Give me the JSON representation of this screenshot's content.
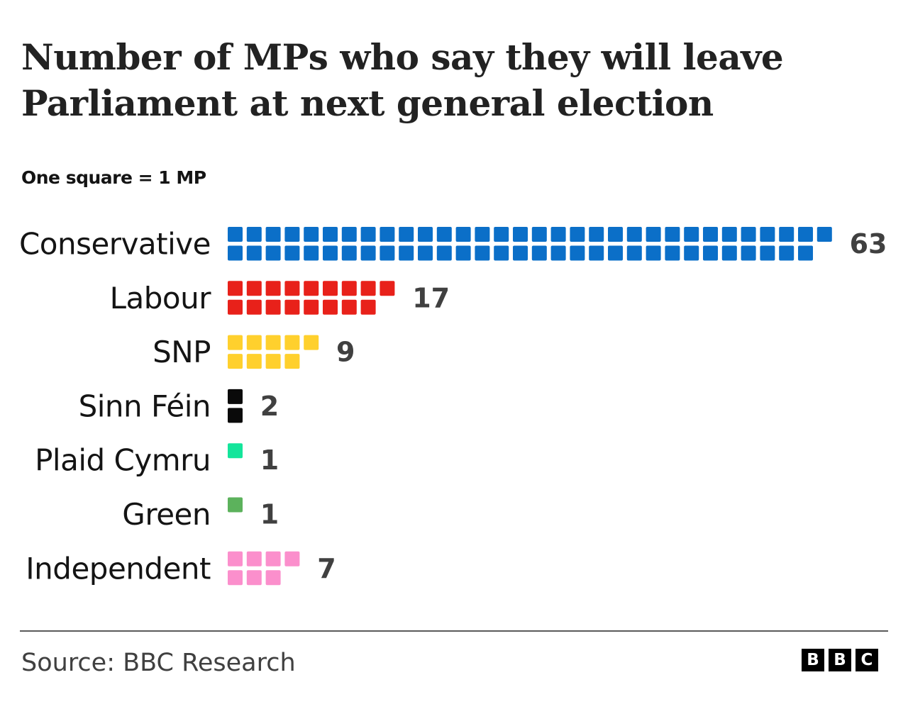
{
  "chart_data": {
    "type": "bar",
    "title": "Number of MPs who say they will leave Parliament at next general election",
    "subtitle": "One square = 1 MP",
    "categories": [
      "Conservative",
      "Labour",
      "SNP",
      "Sinn Féin",
      "Plaid Cymru",
      "Green",
      "Independent"
    ],
    "values": [
      63,
      17,
      9,
      2,
      1,
      1,
      7
    ],
    "colors": [
      "#0b6fc8",
      "#e8211a",
      "#ffd02d",
      "#0a0a0a",
      "#14e59b",
      "#5cb25c",
      "#fb8fcc"
    ],
    "unit": "MP",
    "legend": "none",
    "grid": false
  },
  "footer": {
    "source": "Source: BBC Research",
    "logo_letters": [
      "B",
      "B",
      "C"
    ]
  }
}
